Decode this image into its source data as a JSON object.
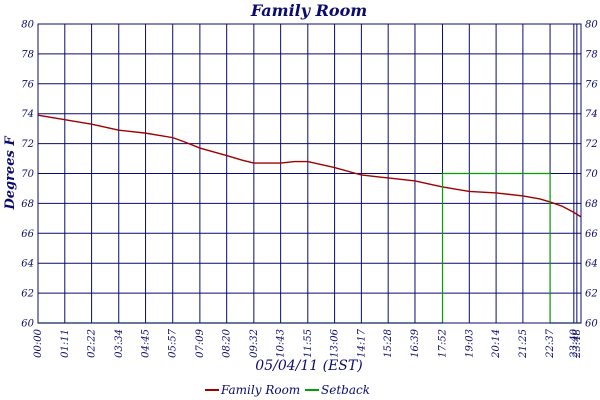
{
  "chart_data": {
    "type": "line",
    "title": "Family Room",
    "xlabel": "05/04/11 (EST)",
    "ylabel": "Degrees F",
    "ylim": [
      60,
      80
    ],
    "yticks": [
      60,
      62,
      64,
      66,
      68,
      70,
      72,
      74,
      76,
      78,
      80
    ],
    "xlim": [
      "00:00",
      "23:59"
    ],
    "xticks": [
      "00:00",
      "01:11",
      "02:22",
      "03:34",
      "04:45",
      "05:57",
      "07:09",
      "08:20",
      "09:32",
      "10:43",
      "11:55",
      "13:06",
      "14:17",
      "15:28",
      "16:39",
      "17:52",
      "19:03",
      "20:14",
      "21:25",
      "22:37",
      "23:40",
      "23:48"
    ],
    "grid": true,
    "legend_position": "bottom",
    "series": [
      {
        "name": "Family Room",
        "color": "#a00000",
        "x": [
          "00:00",
          "01:11",
          "02:22",
          "03:34",
          "04:45",
          "05:57",
          "06:30",
          "07:09",
          "08:20",
          "09:00",
          "09:32",
          "10:43",
          "11:20",
          "11:55",
          "13:06",
          "14:17",
          "15:28",
          "16:39",
          "17:52",
          "19:03",
          "20:14",
          "21:25",
          "22:10",
          "22:37",
          "23:10",
          "23:40",
          "23:59"
        ],
        "values": [
          73.9,
          73.6,
          73.3,
          72.9,
          72.7,
          72.4,
          72.1,
          71.7,
          71.2,
          70.9,
          70.7,
          70.7,
          70.8,
          70.8,
          70.4,
          69.9,
          69.7,
          69.5,
          69.1,
          68.8,
          68.7,
          68.5,
          68.3,
          68.1,
          67.8,
          67.4,
          67.1
        ]
      },
      {
        "name": "Setback",
        "color": "#00a000",
        "x": [
          "00:00",
          "17:52",
          "17:52",
          "22:37",
          "22:37",
          "23:59"
        ],
        "values": [
          60,
          60,
          70,
          70,
          60,
          60
        ]
      }
    ]
  }
}
